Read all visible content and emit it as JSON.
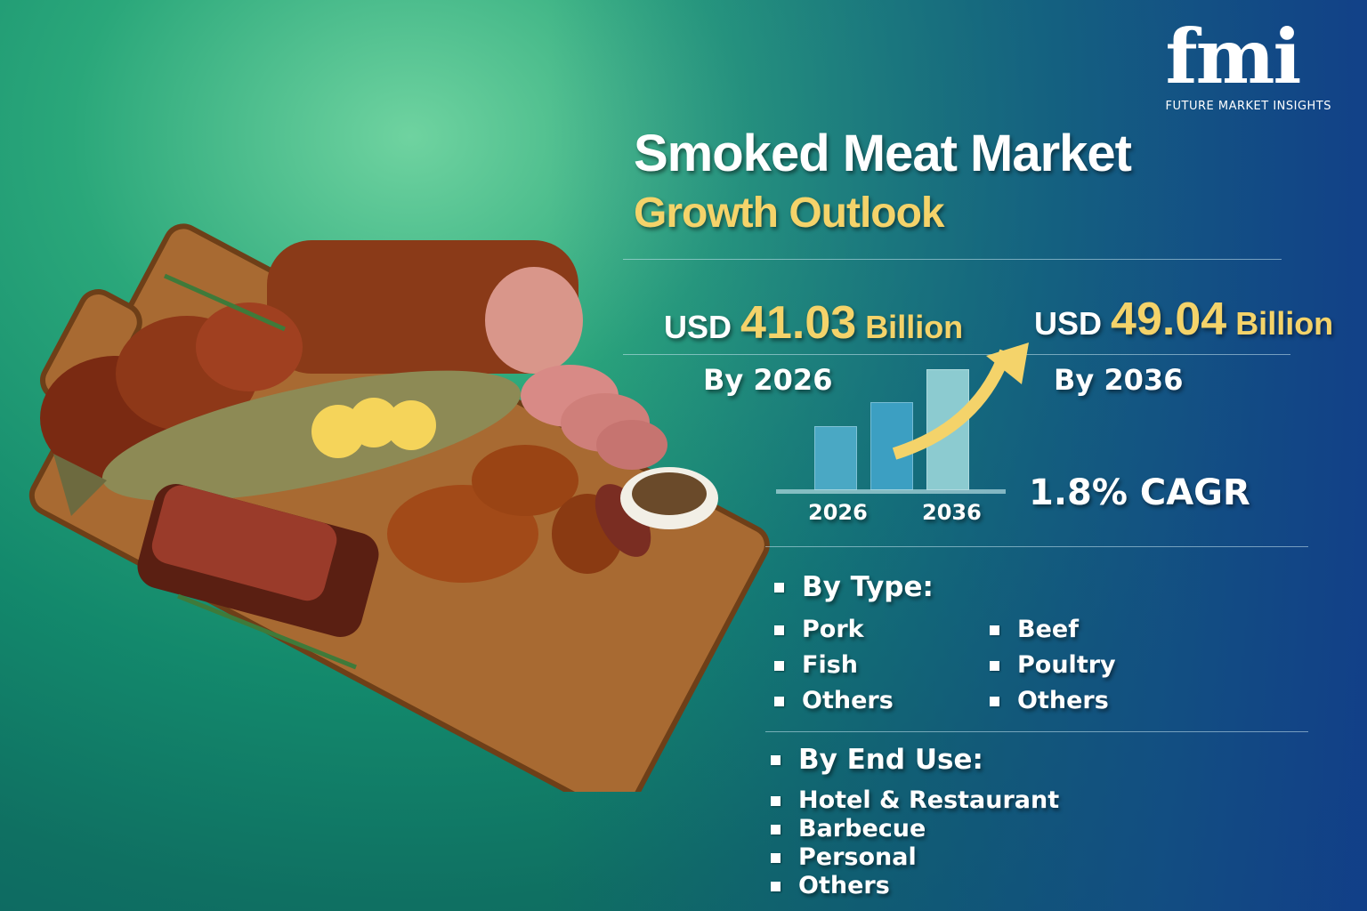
{
  "brand": {
    "logo_text": "fmi",
    "tagline": "FUTURE MARKET INSIGHTS"
  },
  "title": "Smoked Meat Market",
  "subtitle": "Growth Outlook",
  "stats": {
    "start": {
      "prefix": "USD",
      "value": "41.03",
      "unit": "Billion",
      "year_label": "By 2026"
    },
    "end": {
      "prefix": "USD",
      "value": "49.04",
      "unit": "Billion",
      "year_label": "By 2036"
    },
    "cagr": "1.8% CAGR"
  },
  "mini_chart": {
    "x_labels": [
      "2026",
      "2036"
    ],
    "bar_levels": [
      0.45,
      0.62,
      0.85
    ],
    "arrow_color": "#f4d36a"
  },
  "by_type": {
    "heading": "By Type:",
    "col1": [
      "Pork",
      "Fish",
      "Others"
    ],
    "col2": [
      "Beef",
      "Poultry",
      "Others"
    ]
  },
  "by_end_use": {
    "heading": "By End Use:",
    "items": [
      "Hotel & Restaurant",
      "Barbecue",
      "Personal",
      "Others"
    ]
  },
  "colors": {
    "accent_yellow": "#f4d36a",
    "bg_green": "#13896c",
    "bg_blue": "#1a4f9a"
  }
}
